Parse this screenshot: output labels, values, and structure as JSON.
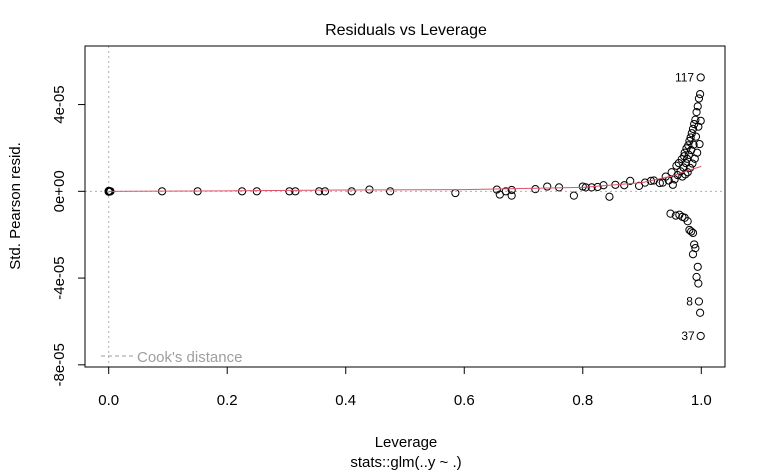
{
  "chart_data": {
    "type": "scatter",
    "title": "Residuals vs Leverage",
    "xlabel": "Leverage",
    "subtitle": "stats::glm(..y ~ .)",
    "ylabel": "Std. Pearson resid.",
    "xlim": [
      -0.04,
      1.04
    ],
    "ylim": [
      -8.1e-05,
      6.7e-05
    ],
    "x_ticks": [
      0.0,
      0.2,
      0.4,
      0.6,
      0.8,
      1.0
    ],
    "x_tick_labels": [
      "0.0",
      "0.2",
      "0.4",
      "0.6",
      "0.8",
      "1.0"
    ],
    "y_ticks": [
      -8e-05,
      -4e-05,
      0.0,
      4e-05
    ],
    "y_tick_labels": [
      "-8e-05",
      "-4e-05",
      "0e+00",
      "4e-05"
    ],
    "legend": {
      "label": "Cook's distance",
      "placement": "bottom-left"
    },
    "reference_lines": {
      "horizontal": 0,
      "vertical": 0
    },
    "point_labels": [
      {
        "label": "117",
        "x": 0.998,
        "y": 5.25e-05
      },
      {
        "label": "8",
        "x": 0.996,
        "y": -5.08e-05
      },
      {
        "label": "37",
        "x": 0.999,
        "y": -6.67e-05
      }
    ],
    "smoother": [
      [
        0.0,
        0.0
      ],
      [
        0.2,
        2e-07
      ],
      [
        0.4,
        6e-07
      ],
      [
        0.6,
        8e-07
      ],
      [
        0.8,
        1.8e-06
      ],
      [
        0.9,
        4e-06
      ],
      [
        0.95,
        7e-06
      ],
      [
        0.98,
        9.8e-06
      ],
      [
        1.0,
        1.15e-05
      ]
    ],
    "points": [
      [
        0.0,
        0.0
      ],
      [
        0.0,
        2e-07
      ],
      [
        0.0,
        -2e-07
      ],
      [
        0.001,
        1e-07
      ],
      [
        0.002,
        -1e-07
      ],
      [
        0.003,
        0.0
      ],
      [
        0.09,
        0.0
      ],
      [
        0.15,
        0.0
      ],
      [
        0.225,
        0.0
      ],
      [
        0.25,
        0.0
      ],
      [
        0.305,
        0.0
      ],
      [
        0.315,
        0.0
      ],
      [
        0.355,
        0.0
      ],
      [
        0.365,
        0.0
      ],
      [
        0.41,
        0.0
      ],
      [
        0.44,
        8e-07
      ],
      [
        0.475,
        0.0
      ],
      [
        0.585,
        -8e-07
      ],
      [
        0.655,
        8e-07
      ],
      [
        0.66,
        -1.5e-06
      ],
      [
        0.67,
        0.0
      ],
      [
        0.68,
        6e-07
      ],
      [
        0.68,
        -2e-06
      ],
      [
        0.72,
        1e-06
      ],
      [
        0.74,
        2.2e-06
      ],
      [
        0.76,
        1.8e-06
      ],
      [
        0.785,
        -2e-06
      ],
      [
        0.8,
        2.2e-06
      ],
      [
        0.805,
        1.8e-06
      ],
      [
        0.815,
        1.8e-06
      ],
      [
        0.825,
        2e-06
      ],
      [
        0.835,
        2.8e-06
      ],
      [
        0.845,
        -2.5e-06
      ],
      [
        0.855,
        3e-06
      ],
      [
        0.87,
        2.8e-06
      ],
      [
        0.88,
        4.8e-06
      ],
      [
        0.895,
        2.5e-06
      ],
      [
        0.905,
        4e-06
      ],
      [
        0.915,
        4.8e-06
      ],
      [
        0.92,
        5e-06
      ],
      [
        0.93,
        3.8e-06
      ],
      [
        0.935,
        4e-06
      ],
      [
        0.94,
        6.8e-06
      ],
      [
        0.945,
        5e-06
      ],
      [
        0.95,
        8.8e-06
      ],
      [
        0.952,
        3e-06
      ],
      [
        0.955,
        5.5e-06
      ],
      [
        0.958,
        1.18e-05
      ],
      [
        0.96,
        7.5e-06
      ],
      [
        0.962,
        1.3e-05
      ],
      [
        0.965,
        9.2e-06
      ],
      [
        0.967,
        1.48e-05
      ],
      [
        0.968,
        6.8e-06
      ],
      [
        0.97,
        1.1e-05
      ],
      [
        0.971,
        1.62e-05
      ],
      [
        0.972,
        1.78e-05
      ],
      [
        0.973,
        7.8e-06
      ],
      [
        0.974,
        1.3e-05
      ],
      [
        0.975,
        1.98e-05
      ],
      [
        0.976,
        1.5e-05
      ],
      [
        0.977,
        8.8e-06
      ],
      [
        0.978,
        2.12e-05
      ],
      [
        0.979,
        1.68e-05
      ],
      [
        0.98,
        2.32e-05
      ],
      [
        0.981,
        1.08e-05
      ],
      [
        0.982,
        2.48e-05
      ],
      [
        0.983,
        1.9e-05
      ],
      [
        0.984,
        2.68e-05
      ],
      [
        0.985,
        1.28e-05
      ],
      [
        0.986,
        2.88e-05
      ],
      [
        0.987,
        2.15e-05
      ],
      [
        0.988,
        3.1e-05
      ],
      [
        0.989,
        1.5e-05
      ],
      [
        0.99,
        3.3e-05
      ],
      [
        0.991,
        2.52e-05
      ],
      [
        0.992,
        3.65e-05
      ],
      [
        0.993,
        1.78e-05
      ],
      [
        0.994,
        3.92e-05
      ],
      [
        0.995,
        2.98e-05
      ],
      [
        0.996,
        4.28e-05
      ],
      [
        0.997,
        2.18e-05
      ],
      [
        0.998,
        4.48e-05
      ],
      [
        0.999,
        3.25e-05
      ],
      [
        0.999,
        5.25e-05
      ],
      [
        0.948,
        -1.03e-05
      ],
      [
        0.957,
        -1.12e-05
      ],
      [
        0.963,
        -1.08e-05
      ],
      [
        0.968,
        -1.18e-05
      ],
      [
        0.972,
        -1.22e-05
      ],
      [
        0.977,
        -1.38e-05
      ],
      [
        0.98,
        -1.78e-05
      ],
      [
        0.983,
        -1.85e-05
      ],
      [
        0.986,
        -1.92e-05
      ],
      [
        0.988,
        -2.45e-05
      ],
      [
        0.99,
        -2.62e-05
      ],
      [
        0.986,
        -2.9e-05
      ],
      [
        0.994,
        -3.48e-05
      ],
      [
        0.992,
        -3.95e-05
      ],
      [
        0.995,
        -4.25e-05
      ],
      [
        0.996,
        -5.08e-05
      ],
      [
        0.998,
        -5.6e-05
      ],
      [
        0.999,
        -6.67e-05
      ]
    ]
  }
}
